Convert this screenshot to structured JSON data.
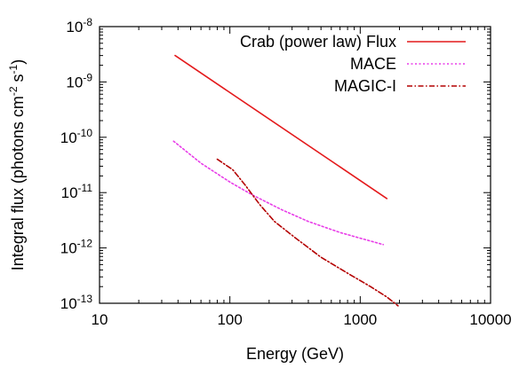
{
  "chart_data": {
    "type": "line",
    "title": "",
    "xlabel": "Energy (GeV)",
    "ylabel": "Integral flux (photons cm^-2 s^-1)",
    "ylabel_parts": {
      "prefix": "Integral flux (photons cm",
      "exp1": "-2",
      "mid": " s",
      "exp2": "-1",
      "suffix": ")"
    },
    "x_scale": "log",
    "y_scale": "log",
    "xlim": [
      10,
      10000
    ],
    "ylim": [
      1e-13,
      1e-08
    ],
    "x_ticks": [
      {
        "value": 10,
        "label": "10"
      },
      {
        "value": 100,
        "label": "100"
      },
      {
        "value": 1000,
        "label": "1000"
      },
      {
        "value": 10000,
        "label": "10000"
      }
    ],
    "y_ticks": [
      {
        "value": 1e-13,
        "mantissa": "10",
        "exp": "-13"
      },
      {
        "value": 1e-12,
        "mantissa": "10",
        "exp": "-12"
      },
      {
        "value": 1e-11,
        "mantissa": "10",
        "exp": "-11"
      },
      {
        "value": 1e-10,
        "mantissa": "10",
        "exp": "-10"
      },
      {
        "value": 1e-09,
        "mantissa": "10",
        "exp": "-9"
      },
      {
        "value": 1e-08,
        "mantissa": "10",
        "exp": "-8"
      }
    ],
    "grid": false,
    "legend_position": "top-right",
    "series": [
      {
        "name": "Crab (power law) Flux",
        "color": "#e41a1c",
        "style": "solid",
        "x": [
          38,
          1600
        ],
        "y": [
          3e-09,
          7.8e-12
        ]
      },
      {
        "name": "MACE",
        "color": "#e83ce8",
        "style": "dotted",
        "x": [
          37,
          60,
          100,
          150,
          250,
          400,
          700,
          1000,
          1500
        ],
        "y": [
          8.5e-11,
          3.4e-11,
          1.55e-11,
          9e-12,
          4.9e-12,
          3e-12,
          1.9e-12,
          1.5e-12,
          1.15e-12
        ]
      },
      {
        "name": "MAGIC-I",
        "color": "#b40000",
        "style": "dash-dot",
        "x": [
          80,
          105,
          130,
          170,
          220,
          320,
          500,
          800,
          1200,
          1600,
          1950
        ],
        "y": [
          4e-11,
          2.6e-11,
          1.4e-11,
          6e-12,
          3e-12,
          1.5e-12,
          6.8e-13,
          3.5e-13,
          2e-13,
          1.3e-13,
          9e-14
        ]
      }
    ]
  }
}
